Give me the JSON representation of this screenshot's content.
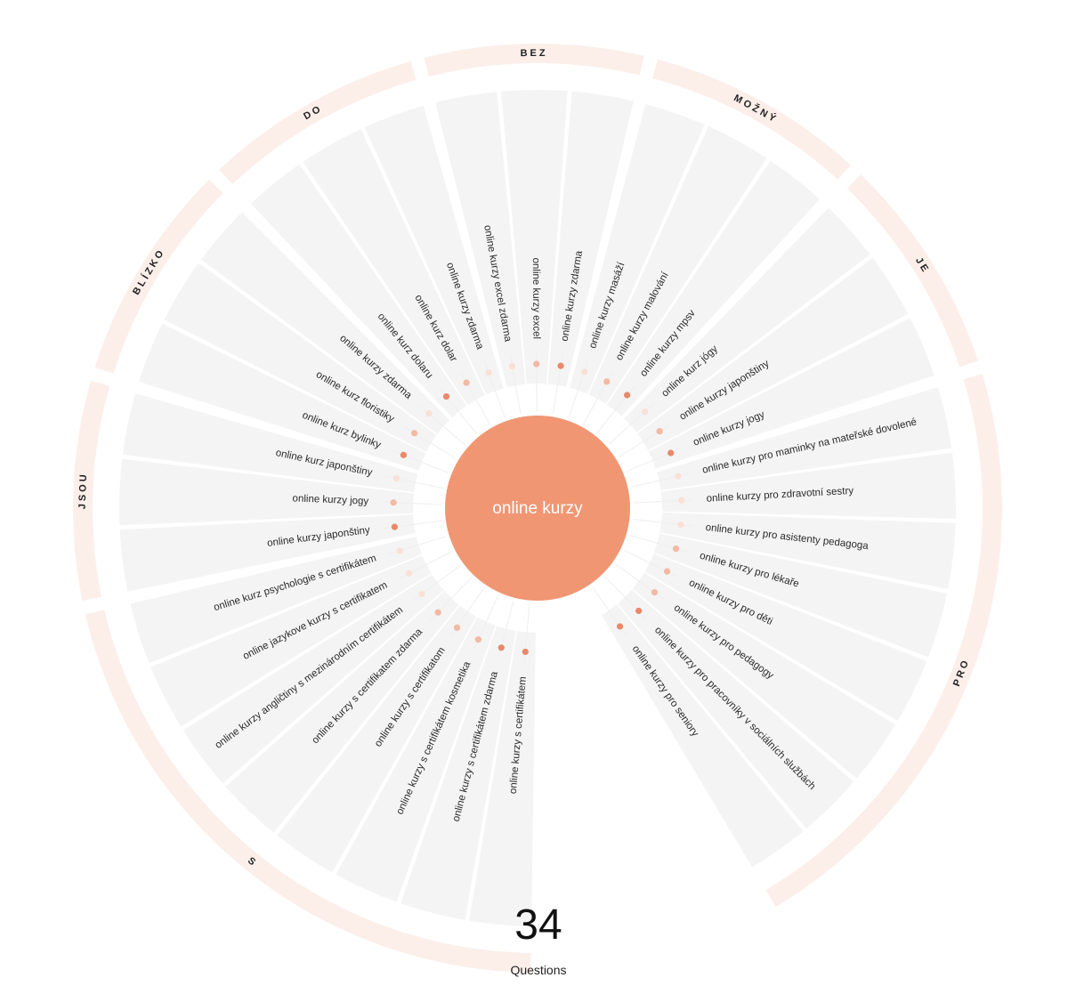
{
  "root": {
    "keyword": "online kurzy"
  },
  "summary": {
    "count": "34",
    "count_label": "Questions"
  },
  "colors": {
    "center": "#f09673",
    "cell": "#f4f4f4",
    "ring": "#fcefea",
    "spoke": "#eeeeee",
    "dot_dark": "#e8896a",
    "dot_mid": "#f2b9a3",
    "dot_light": "#fae0d6"
  },
  "groups": [
    {
      "preposition": "S",
      "items": [
        {
          "text": "online kurzy s certifikátem",
          "level": "dark"
        },
        {
          "text": "online kurzy s certifikátem zdarma",
          "level": "dark"
        },
        {
          "text": "online kurzy s certifikátem kosmetika",
          "level": "mid"
        },
        {
          "text": "online kurzy s certifikatom",
          "level": "mid"
        },
        {
          "text": "online kurzy s certifikatem zdarma",
          "level": "mid"
        },
        {
          "text": "online kurzy angličtiny s mezinárodním certifikátem",
          "level": "light"
        },
        {
          "text": "online jazykove kurzy s certifikatem",
          "level": "light"
        },
        {
          "text": "online kurz psychologie s certifikátem",
          "level": "light"
        }
      ]
    },
    {
      "preposition": "JSOU",
      "items": [
        {
          "text": "online kurzy japonštiny",
          "level": "dark"
        },
        {
          "text": "online kurzy jogy",
          "level": "mid"
        },
        {
          "text": "online kurz japonštiny",
          "level": "light"
        }
      ]
    },
    {
      "preposition": "BLÍZKO",
      "items": [
        {
          "text": "online kurz bylinky",
          "level": "dark"
        },
        {
          "text": "online kurz floristiky",
          "level": "mid"
        },
        {
          "text": "online kurzy zdarma",
          "level": "light"
        }
      ]
    },
    {
      "preposition": "DO",
      "items": [
        {
          "text": "online kurz dolaru",
          "level": "dark"
        },
        {
          "text": "online kurz dolar",
          "level": "mid"
        },
        {
          "text": "online kurzy zdarma",
          "level": "light"
        }
      ]
    },
    {
      "preposition": "BEZ",
      "items": [
        {
          "text": "online kurzy excel zdarma",
          "level": "light"
        },
        {
          "text": "online kurzy excel",
          "level": "mid"
        },
        {
          "text": "online kurzy zdarma",
          "level": "dark"
        }
      ]
    },
    {
      "preposition": "MOŽNÝ",
      "items": [
        {
          "text": "online kurzy masáží",
          "level": "light"
        },
        {
          "text": "online kurzy malování",
          "level": "mid"
        },
        {
          "text": "online kurzy mpsv",
          "level": "dark"
        }
      ]
    },
    {
      "preposition": "JE",
      "items": [
        {
          "text": "online kurz jógy",
          "level": "light"
        },
        {
          "text": "online kurzy japonštiny",
          "level": "mid"
        },
        {
          "text": "online kurzy jogy",
          "level": "dark"
        }
      ]
    },
    {
      "preposition": "PRO",
      "items": [
        {
          "text": "online kurzy pro maminky na mateřské dovolené",
          "level": "light"
        },
        {
          "text": "online kurzy pro zdravotní sestry",
          "level": "light"
        },
        {
          "text": "online kurzy pro asistenty pedagoga",
          "level": "light"
        },
        {
          "text": "online kurzy pro lékaře",
          "level": "mid"
        },
        {
          "text": "online kurzy pro děti",
          "level": "mid"
        },
        {
          "text": "online kurzy pro pedagogy",
          "level": "mid"
        },
        {
          "text": "online kurzy pro pracovníky v sociálních službách",
          "level": "dark"
        },
        {
          "text": "online kurzy pro seniory",
          "level": "dark"
        }
      ]
    }
  ]
}
